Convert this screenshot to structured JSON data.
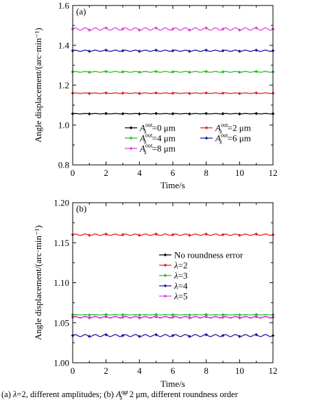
{
  "caption": {
    "a_label": "(a)",
    "a_lambda": "λ",
    "a_text": "=2,   different   amplitudes;",
    "b_label": "(b)",
    "b_sym": "A",
    "b_sup": "out",
    "b_sub": "λ",
    "b_text": "= 2  μm, different roundness order"
  },
  "chart_data": [
    {
      "type": "line",
      "panel_label": "(a)",
      "xlabel": "Time/s",
      "ylabel": "Angle displacement/(arc·min⁻¹)",
      "xlim": [
        0,
        12
      ],
      "ylim": [
        0.8,
        1.6
      ],
      "xticks": [
        "0",
        "2",
        "4",
        "6",
        "8",
        "10",
        "12"
      ],
      "yticks": [
        "0.8",
        "1.0",
        "1.2",
        "1.4",
        "1.6"
      ],
      "grid": false,
      "legend_position": "bottom-center",
      "series": [
        {
          "name": "=0 μm",
          "symbol": "A",
          "sup": "out",
          "sub": "λ",
          "color": "#000000",
          "mean": 1.057,
          "amplitude": 0.001
        },
        {
          "name": "=2 μm",
          "symbol": "A",
          "sup": "out",
          "sub": "λ",
          "color": "#e02020",
          "mean": 1.16,
          "amplitude": 0.0015
        },
        {
          "name": "=4 μm",
          "symbol": "A",
          "sup": "out",
          "sub": "λ",
          "color": "#20c020",
          "mean": 1.267,
          "amplitude": 0.002
        },
        {
          "name": "=6 μm",
          "symbol": "A",
          "sup": "out",
          "sub": "λ",
          "color": "#1a1aa0",
          "mean": 1.373,
          "amplitude": 0.003
        },
        {
          "name": "=8 μm",
          "symbol": "A",
          "sup": "out",
          "sub": "λ",
          "color": "#e040e0",
          "mean": 1.482,
          "amplitude": 0.006
        }
      ]
    },
    {
      "type": "line",
      "panel_label": "(b)",
      "xlabel": "Time/s",
      "ylabel": "Angle displacement/(arc·min⁻¹)",
      "xlim": [
        0,
        12
      ],
      "ylim": [
        1.0,
        1.2
      ],
      "xticks": [
        "0",
        "2",
        "4",
        "6",
        "8",
        "10",
        "12"
      ],
      "yticks": [
        "1.00",
        "1.05",
        "1.10",
        "1.15",
        "1.20"
      ],
      "grid": false,
      "legend_position": "center-right",
      "series": [
        {
          "name": "No roundness error",
          "color": "#000000",
          "mean": 1.057,
          "amplitude": 0.0008
        },
        {
          "name": "=2",
          "prefix": "λ",
          "color": "#e02020",
          "mean": 1.16,
          "amplitude": 0.0008
        },
        {
          "name": "=3",
          "prefix": "λ",
          "color": "#20c020",
          "mean": 1.06,
          "amplitude": 0.0003
        },
        {
          "name": "=4",
          "prefix": "λ",
          "color": "#1a1aa0",
          "mean": 1.034,
          "amplitude": 0.0012
        },
        {
          "name": "=5",
          "prefix": "λ",
          "color": "#e040e0",
          "mean": 1.057,
          "amplitude": 0.0012
        }
      ]
    }
  ]
}
